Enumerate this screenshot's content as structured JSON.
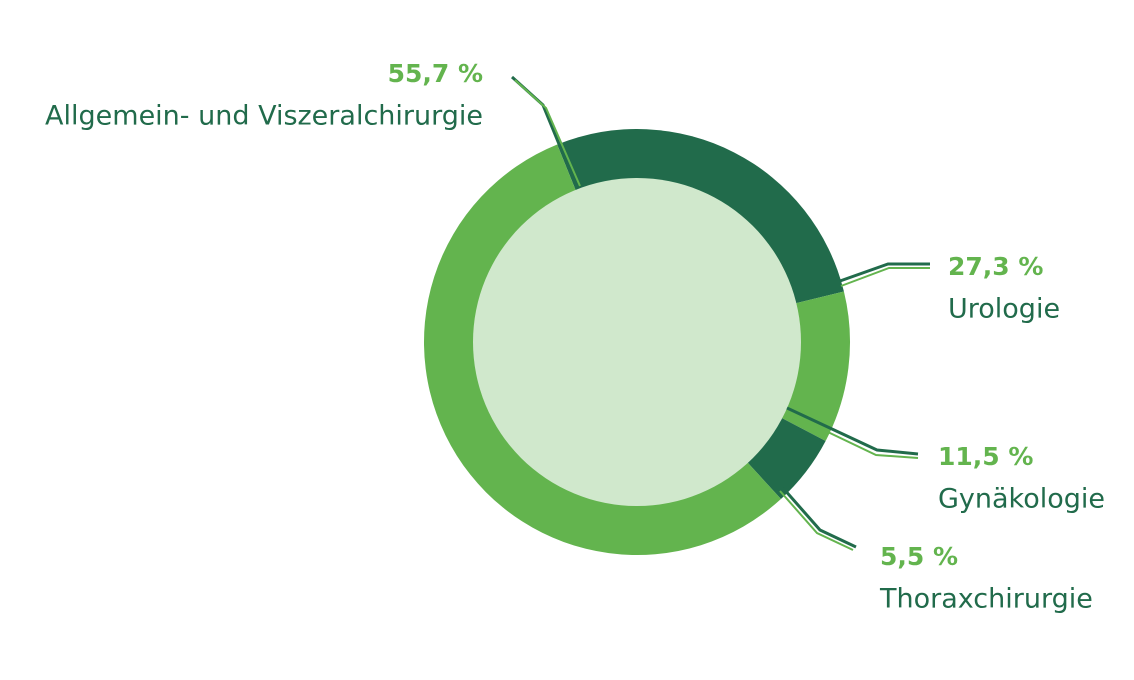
{
  "chart_data": {
    "type": "donut",
    "categories": [
      "Urologie",
      "Gynäkologie",
      "Thoraxchirurgie",
      "Allgemein- und Viszeralchirurgie"
    ],
    "values": [
      27.3,
      11.5,
      5.5,
      55.7
    ],
    "value_labels": [
      "27,3 %",
      "11,5 %",
      "5,5 %",
      "55,7 %"
    ],
    "colors": [
      "#216b4b",
      "#63b44e",
      "#216b4b",
      "#63b44e"
    ]
  }
}
